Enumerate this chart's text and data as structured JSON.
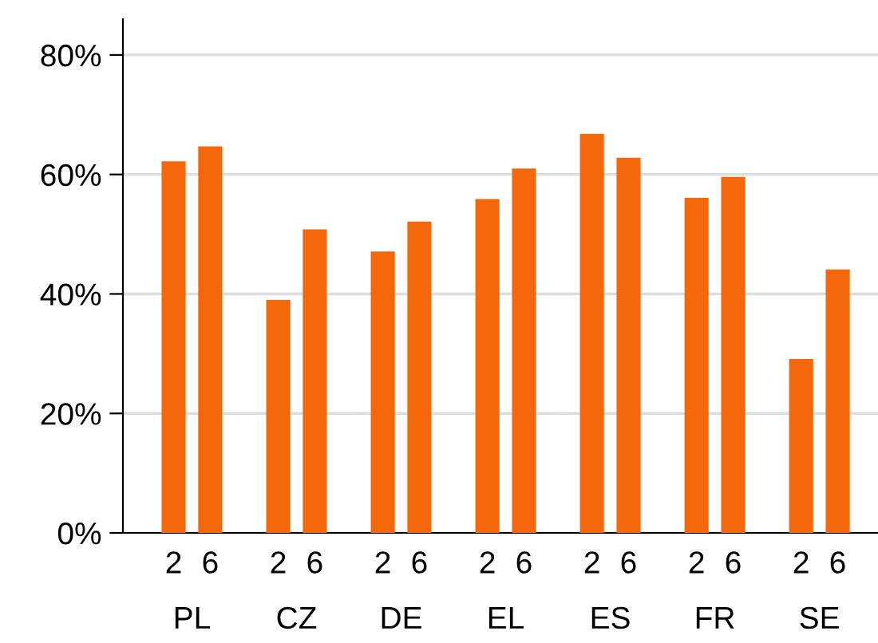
{
  "chart_data": {
    "type": "bar",
    "categories": [
      "PL",
      "CZ",
      "DE",
      "EL",
      "ES",
      "FR",
      "SE"
    ],
    "series": [
      {
        "name": "2",
        "color": "#f4680b",
        "values": [
          62.2,
          39.0,
          47.1,
          55.9,
          66.8,
          56.1,
          29.1
        ]
      },
      {
        "name": "6",
        "color": "#f4680b",
        "values": [
          64.7,
          50.8,
          52.1,
          61.0,
          62.8,
          59.6,
          44.1
        ]
      }
    ],
    "ylim": [
      0,
      86
    ],
    "yticks": [
      {
        "value": 0,
        "label": "0%"
      },
      {
        "value": 20,
        "label": "20%"
      },
      {
        "value": 40,
        "label": "40%"
      },
      {
        "value": 60,
        "label": "60%"
      },
      {
        "value": 80,
        "label": "80%"
      }
    ],
    "grid": "y",
    "legend": false
  }
}
